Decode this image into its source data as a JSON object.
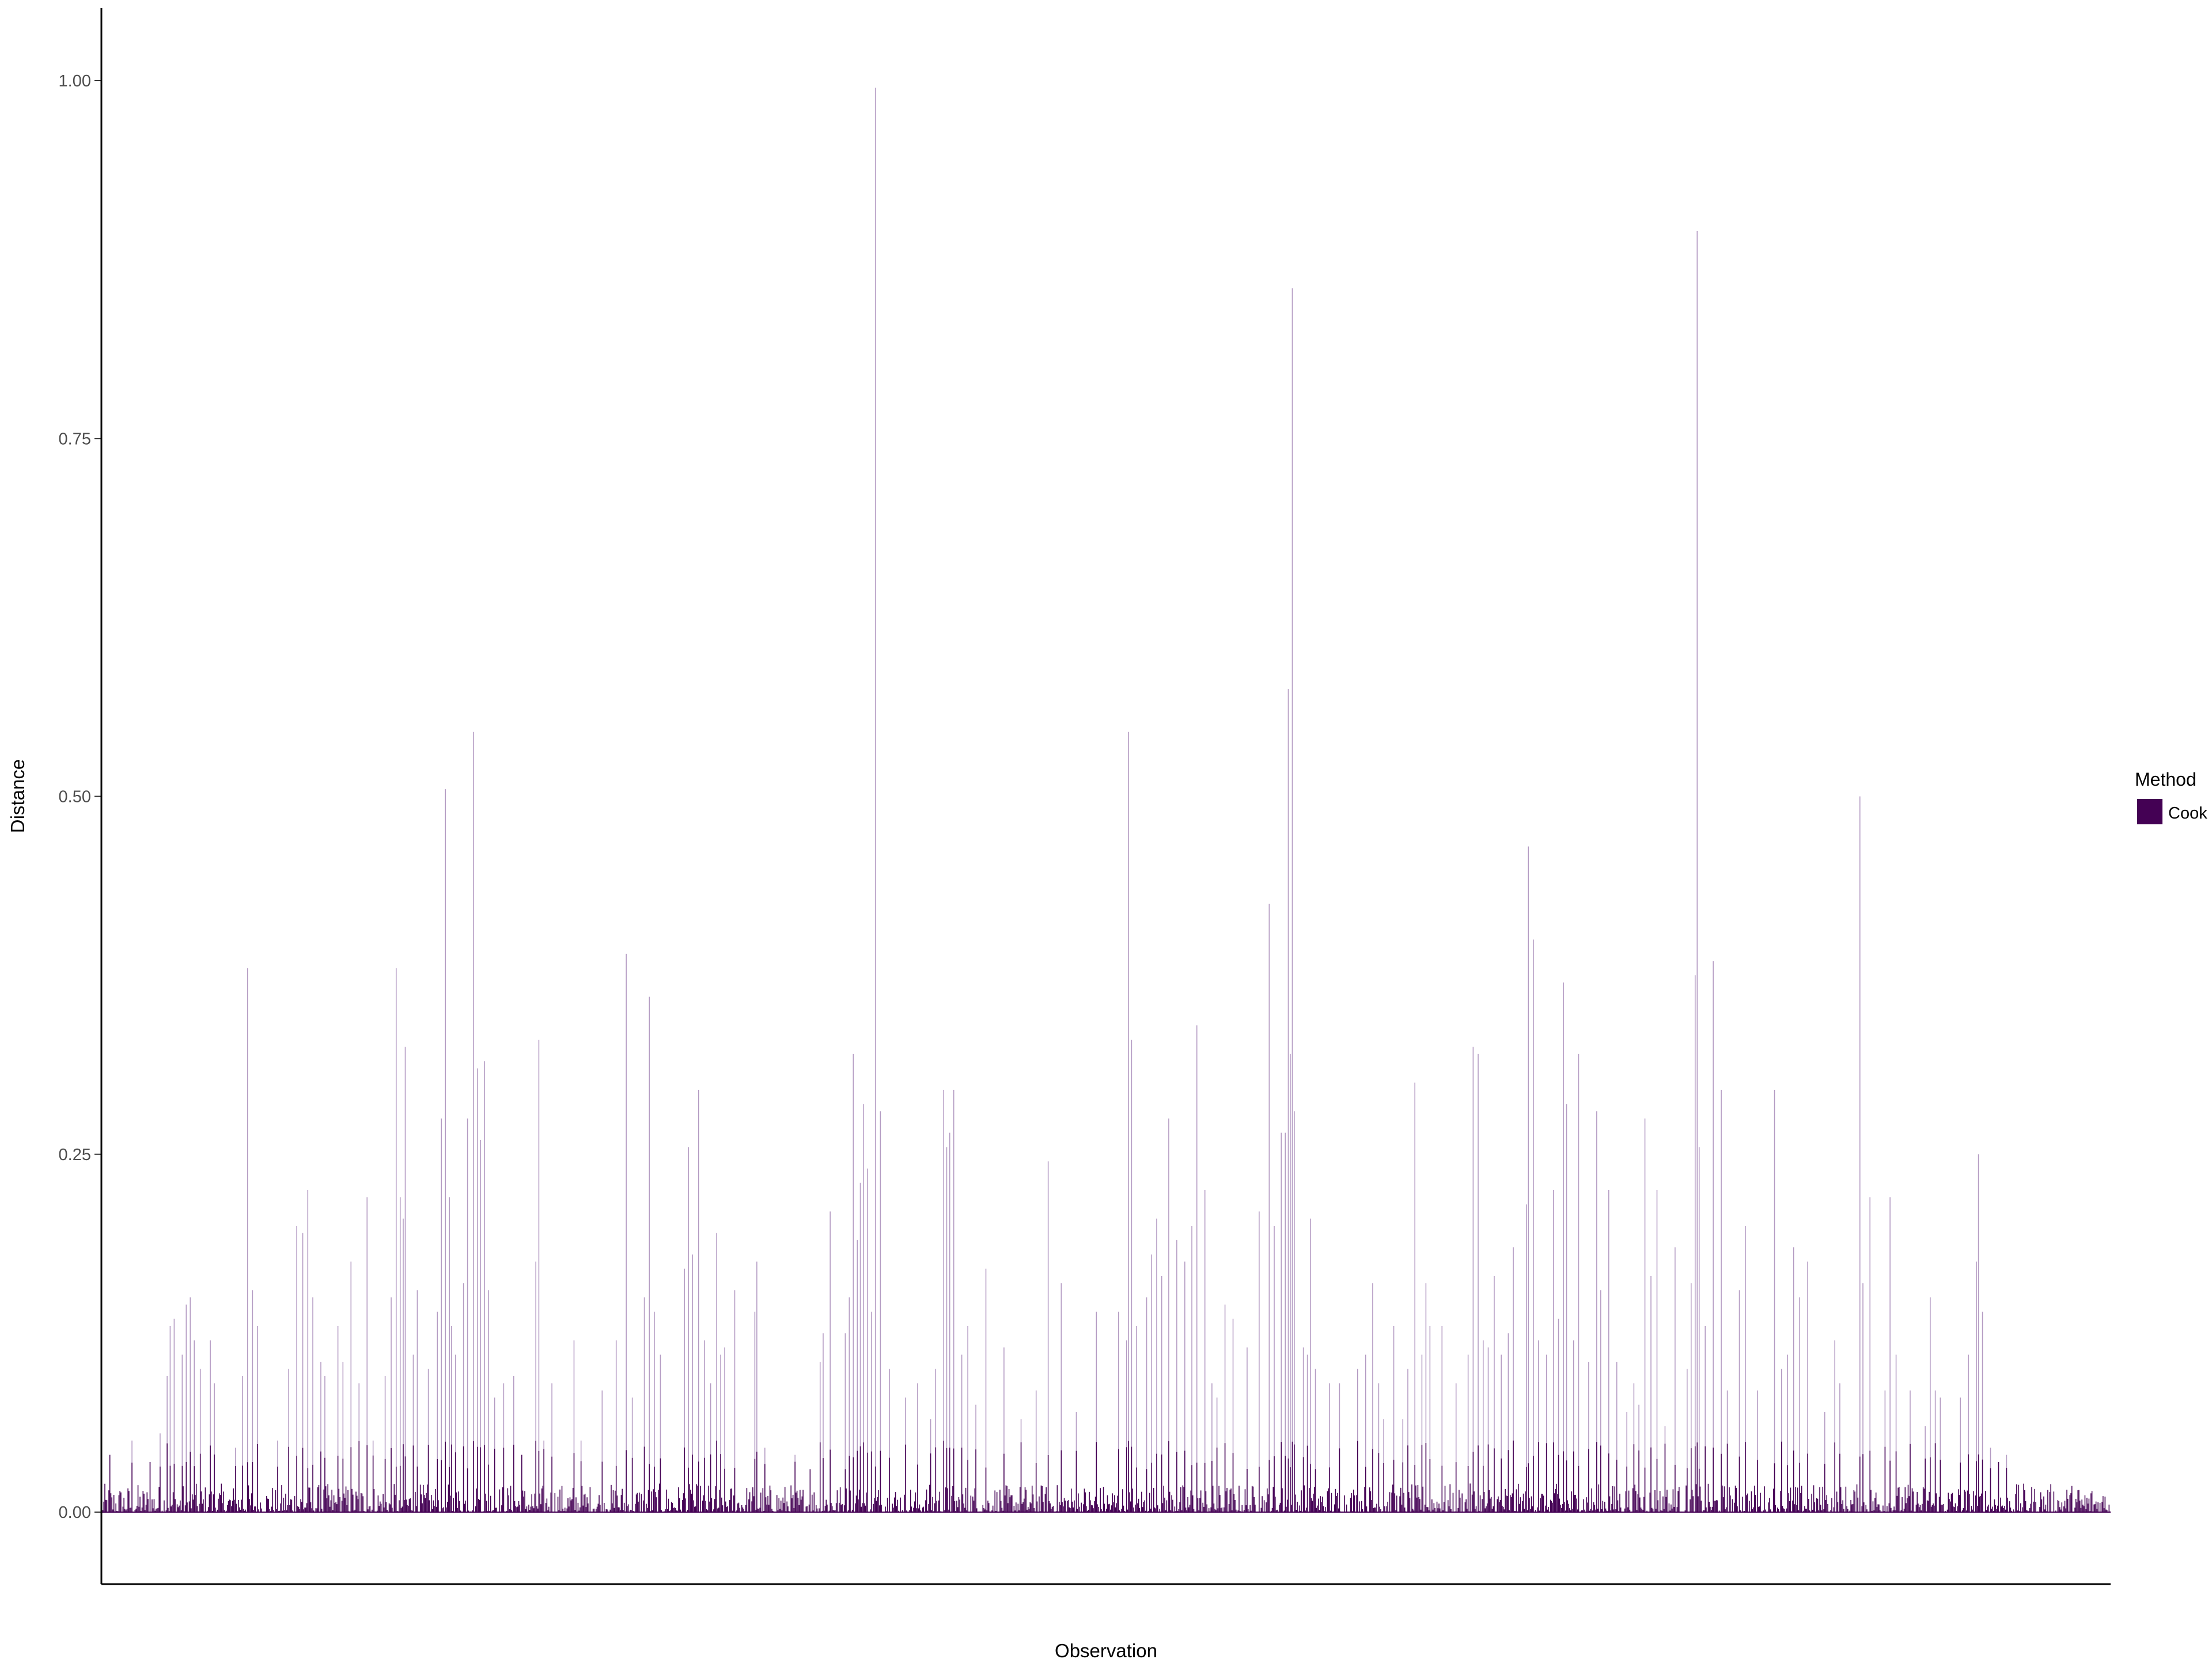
{
  "chart_data": {
    "type": "bar",
    "title": "",
    "xlabel": "Observation",
    "ylabel": "Distance",
    "ylim": [
      -0.05,
      1.05
    ],
    "y_ticks": [
      0.0,
      0.25,
      0.5,
      0.75,
      1.0
    ],
    "y_tick_labels": [
      "0.00",
      "0.25",
      "0.50",
      "0.75",
      "1.00"
    ],
    "x_ticks_shown": false,
    "grid": false,
    "legend": {
      "title": "Method",
      "position": "right",
      "entries": [
        {
          "name": "Cook",
          "color": "#440154"
        }
      ]
    },
    "colors": {
      "bar_fill": "#440154",
      "bar_line": "#b49bc3",
      "axis": "#000000"
    },
    "series": [
      {
        "name": "Cook",
        "n_observations": 2000,
        "baseline_max": 0.02,
        "peaks": [
          [
            8,
            0.04
          ],
          [
            30,
            0.05
          ],
          [
            48,
            0.035
          ],
          [
            58,
            0.055
          ],
          [
            65,
            0.095
          ],
          [
            68,
            0.13
          ],
          [
            72,
            0.135
          ],
          [
            80,
            0.11
          ],
          [
            84,
            0.145
          ],
          [
            88,
            0.15
          ],
          [
            92,
            0.12
          ],
          [
            98,
            0.1
          ],
          [
            108,
            0.12
          ],
          [
            112,
            0.09
          ],
          [
            133,
            0.045
          ],
          [
            140,
            0.095
          ],
          [
            145,
            0.38
          ],
          [
            150,
            0.155
          ],
          [
            155,
            0.13
          ],
          [
            175,
            0.05
          ],
          [
            186,
            0.1
          ],
          [
            194,
            0.2
          ],
          [
            200,
            0.195
          ],
          [
            205,
            0.225
          ],
          [
            210,
            0.15
          ],
          [
            218,
            0.105
          ],
          [
            222,
            0.095
          ],
          [
            235,
            0.13
          ],
          [
            240,
            0.105
          ],
          [
            248,
            0.175
          ],
          [
            256,
            0.09
          ],
          [
            264,
            0.22
          ],
          [
            270,
            0.05
          ],
          [
            282,
            0.095
          ],
          [
            288,
            0.15
          ],
          [
            293,
            0.38
          ],
          [
            297,
            0.22
          ],
          [
            300,
            0.205
          ],
          [
            302,
            0.325
          ],
          [
            310,
            0.11
          ],
          [
            314,
            0.155
          ],
          [
            325,
            0.1
          ],
          [
            334,
            0.14
          ],
          [
            338,
            0.275
          ],
          [
            342,
            0.505
          ],
          [
            346,
            0.22
          ],
          [
            348,
            0.13
          ],
          [
            352,
            0.11
          ],
          [
            360,
            0.16
          ],
          [
            364,
            0.275
          ],
          [
            370,
            0.545
          ],
          [
            374,
            0.31
          ],
          [
            377,
            0.26
          ],
          [
            381,
            0.315
          ],
          [
            385,
            0.155
          ],
          [
            391,
            0.08
          ],
          [
            400,
            0.09
          ],
          [
            410,
            0.095
          ],
          [
            418,
            0.04
          ],
          [
            432,
            0.175
          ],
          [
            435,
            0.33
          ],
          [
            440,
            0.05
          ],
          [
            448,
            0.09
          ],
          [
            470,
            0.12
          ],
          [
            477,
            0.05
          ],
          [
            498,
            0.085
          ],
          [
            512,
            0.12
          ],
          [
            522,
            0.39
          ],
          [
            528,
            0.08
          ],
          [
            540,
            0.15
          ],
          [
            545,
            0.36
          ],
          [
            550,
            0.14
          ],
          [
            556,
            0.11
          ],
          [
            580,
            0.17
          ],
          [
            584,
            0.255
          ],
          [
            588,
            0.18
          ],
          [
            594,
            0.295
          ],
          [
            600,
            0.12
          ],
          [
            606,
            0.09
          ],
          [
            612,
            0.195
          ],
          [
            616,
            0.11
          ],
          [
            620,
            0.115
          ],
          [
            630,
            0.155
          ],
          [
            650,
            0.14
          ],
          [
            652,
            0.175
          ],
          [
            660,
            0.045
          ],
          [
            690,
            0.04
          ],
          [
            705,
            0.03
          ],
          [
            715,
            0.105
          ],
          [
            718,
            0.125
          ],
          [
            725,
            0.21
          ],
          [
            740,
            0.125
          ],
          [
            744,
            0.15
          ],
          [
            748,
            0.32
          ],
          [
            752,
            0.19
          ],
          [
            755,
            0.23
          ],
          [
            758,
            0.285
          ],
          [
            762,
            0.24
          ],
          [
            766,
            0.14
          ],
          [
            770,
            0.995
          ],
          [
            775,
            0.28
          ],
          [
            784,
            0.1
          ],
          [
            800,
            0.08
          ],
          [
            812,
            0.09
          ],
          [
            825,
            0.065
          ],
          [
            830,
            0.1
          ],
          [
            838,
            0.295
          ],
          [
            841,
            0.255
          ],
          [
            844,
            0.265
          ],
          [
            848,
            0.295
          ],
          [
            856,
            0.11
          ],
          [
            862,
            0.13
          ],
          [
            870,
            0.075
          ],
          [
            880,
            0.17
          ],
          [
            898,
            0.115
          ],
          [
            915,
            0.065
          ],
          [
            930,
            0.085
          ],
          [
            942,
            0.245
          ],
          [
            955,
            0.16
          ],
          [
            970,
            0.07
          ],
          [
            990,
            0.14
          ],
          [
            1012,
            0.14
          ],
          [
            1020,
            0.12
          ],
          [
            1022,
            0.545
          ],
          [
            1025,
            0.33
          ],
          [
            1030,
            0.13
          ],
          [
            1040,
            0.15
          ],
          [
            1045,
            0.18
          ],
          [
            1050,
            0.205
          ],
          [
            1055,
            0.165
          ],
          [
            1062,
            0.275
          ],
          [
            1070,
            0.19
          ],
          [
            1078,
            0.175
          ],
          [
            1085,
            0.2
          ],
          [
            1090,
            0.34
          ],
          [
            1098,
            0.225
          ],
          [
            1105,
            0.09
          ],
          [
            1110,
            0.08
          ],
          [
            1118,
            0.145
          ],
          [
            1126,
            0.135
          ],
          [
            1140,
            0.115
          ],
          [
            1152,
            0.21
          ],
          [
            1162,
            0.425
          ],
          [
            1167,
            0.2
          ],
          [
            1174,
            0.265
          ],
          [
            1178,
            0.265
          ],
          [
            1181,
            0.575
          ],
          [
            1183,
            0.32
          ],
          [
            1185,
            0.855
          ],
          [
            1187,
            0.28
          ],
          [
            1196,
            0.115
          ],
          [
            1200,
            0.11
          ],
          [
            1203,
            0.205
          ],
          [
            1208,
            0.1
          ],
          [
            1222,
            0.09
          ],
          [
            1232,
            0.09
          ],
          [
            1250,
            0.1
          ],
          [
            1258,
            0.11
          ],
          [
            1265,
            0.16
          ],
          [
            1271,
            0.09
          ],
          [
            1276,
            0.065
          ],
          [
            1286,
            0.13
          ],
          [
            1295,
            0.065
          ],
          [
            1300,
            0.1
          ],
          [
            1307,
            0.3
          ],
          [
            1314,
            0.11
          ],
          [
            1318,
            0.16
          ],
          [
            1322,
            0.13
          ],
          [
            1334,
            0.13
          ],
          [
            1348,
            0.09
          ],
          [
            1360,
            0.11
          ],
          [
            1365,
            0.325
          ],
          [
            1370,
            0.32
          ],
          [
            1375,
            0.12
          ],
          [
            1380,
            0.115
          ],
          [
            1386,
            0.165
          ],
          [
            1393,
            0.11
          ],
          [
            1400,
            0.125
          ],
          [
            1405,
            0.185
          ],
          [
            1418,
            0.215
          ],
          [
            1420,
            0.465
          ],
          [
            1425,
            0.4
          ],
          [
            1430,
            0.12
          ],
          [
            1438,
            0.11
          ],
          [
            1445,
            0.225
          ],
          [
            1450,
            0.135
          ],
          [
            1455,
            0.37
          ],
          [
            1458,
            0.285
          ],
          [
            1465,
            0.12
          ],
          [
            1470,
            0.32
          ],
          [
            1480,
            0.105
          ],
          [
            1488,
            0.28
          ],
          [
            1492,
            0.155
          ],
          [
            1500,
            0.225
          ],
          [
            1508,
            0.105
          ],
          [
            1518,
            0.07
          ],
          [
            1525,
            0.09
          ],
          [
            1530,
            0.075
          ],
          [
            1536,
            0.275
          ],
          [
            1542,
            0.165
          ],
          [
            1548,
            0.225
          ],
          [
            1556,
            0.06
          ],
          [
            1566,
            0.185
          ],
          [
            1578,
            0.1
          ],
          [
            1582,
            0.16
          ],
          [
            1586,
            0.375
          ],
          [
            1588,
            0.895
          ],
          [
            1590,
            0.255
          ],
          [
            1596,
            0.13
          ],
          [
            1604,
            0.385
          ],
          [
            1612,
            0.295
          ],
          [
            1618,
            0.085
          ],
          [
            1630,
            0.155
          ],
          [
            1636,
            0.2
          ],
          [
            1648,
            0.085
          ],
          [
            1665,
            0.295
          ],
          [
            1672,
            0.1
          ],
          [
            1678,
            0.11
          ],
          [
            1684,
            0.185
          ],
          [
            1690,
            0.15
          ],
          [
            1698,
            0.175
          ],
          [
            1715,
            0.07
          ],
          [
            1725,
            0.12
          ],
          [
            1730,
            0.09
          ],
          [
            1750,
            0.5
          ],
          [
            1753,
            0.16
          ],
          [
            1760,
            0.22
          ],
          [
            1775,
            0.085
          ],
          [
            1780,
            0.22
          ],
          [
            1786,
            0.11
          ],
          [
            1800,
            0.085
          ],
          [
            1815,
            0.06
          ],
          [
            1820,
            0.15
          ],
          [
            1825,
            0.085
          ],
          [
            1830,
            0.08
          ],
          [
            1850,
            0.08
          ],
          [
            1858,
            0.11
          ],
          [
            1866,
            0.175
          ],
          [
            1868,
            0.25
          ],
          [
            1872,
            0.14
          ],
          [
            1880,
            0.045
          ],
          [
            1888,
            0.035
          ],
          [
            1896,
            0.04
          ]
        ]
      }
    ]
  }
}
